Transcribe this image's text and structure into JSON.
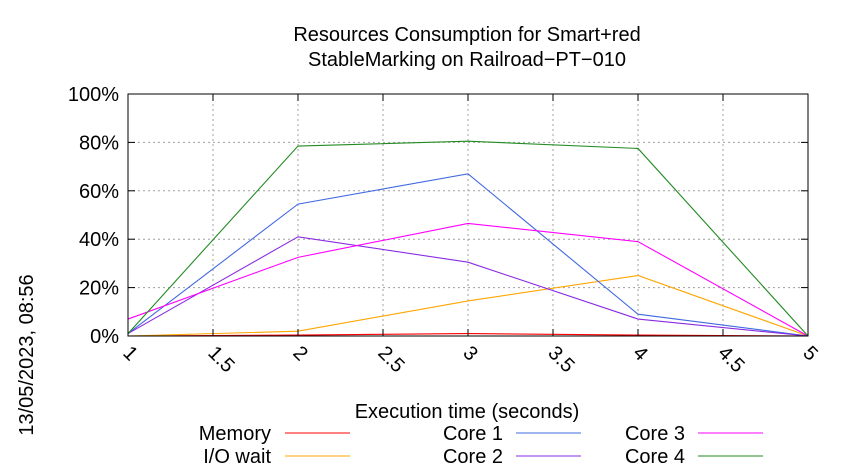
{
  "side_label": "13/05/2023, 08:56",
  "chart_data": {
    "type": "line",
    "title": "Resources Consumption for Smart+red StableMarking on Railroad-PT-010",
    "title_lines": [
      "Resources Consumption for Smart+red",
      "StableMarking on Railroad−PT−010"
    ],
    "xlabel": "Execution time (seconds)",
    "ylabel": "",
    "xlim": [
      1,
      5
    ],
    "ylim": [
      0,
      100
    ],
    "x_ticks": [
      1,
      1.5,
      2,
      2.5,
      3,
      3.5,
      4,
      4.5,
      5
    ],
    "x_tick_labels": [
      "1",
      "1.5",
      "2",
      "2.5",
      "3",
      "3.5",
      "4",
      "4.5",
      "5"
    ],
    "y_ticks": [
      0,
      20,
      40,
      60,
      80,
      100
    ],
    "y_tick_labels": [
      "0%",
      "20%",
      "40%",
      "60%",
      "80%",
      "100%"
    ],
    "grid": true,
    "legend_position": "bottom",
    "x": [
      1,
      2,
      3,
      4,
      5
    ],
    "series": [
      {
        "name": "Memory",
        "color": "#ff0000",
        "values": [
          0,
          0.4,
          1.0,
          0.4,
          0
        ]
      },
      {
        "name": "I/O wait",
        "color": "#ffa500",
        "values": [
          0,
          2,
          14.5,
          25,
          0
        ]
      },
      {
        "name": "Core 1",
        "color": "#4169e1",
        "values": [
          1,
          54.5,
          67,
          9,
          0
        ]
      },
      {
        "name": "Core 2",
        "color": "#8a2be2",
        "values": [
          1,
          41,
          30.5,
          7,
          0
        ]
      },
      {
        "name": "Core 3",
        "color": "#ff00ff",
        "values": [
          7,
          32.5,
          46.5,
          39,
          0
        ]
      },
      {
        "name": "Core 4",
        "color": "#228b22",
        "values": [
          1,
          78.5,
          80.5,
          77.5,
          0
        ]
      }
    ]
  }
}
